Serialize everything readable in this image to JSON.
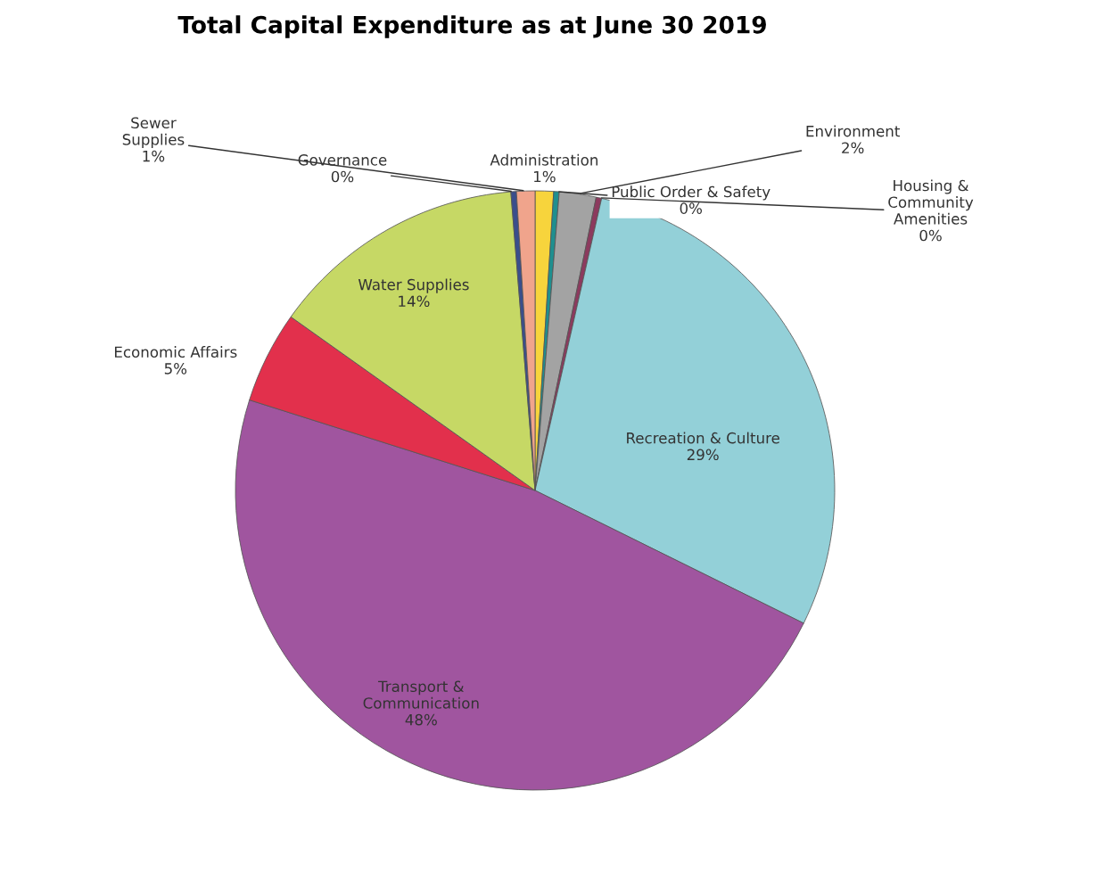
{
  "chart_data": {
    "type": "pie",
    "title": "Total Capital Expenditure as at June 30 2019",
    "categories": [
      "Administration",
      "Public Order & Safety",
      "Environment",
      "Housing &\nCommunity\nAmenities",
      "Recreation & Culture",
      "Transport &\nCommunication",
      "Economic Affairs",
      "Water Supplies",
      "Governance",
      "Sewer\nSupplies"
    ],
    "values": [
      1,
      0.3,
      2,
      0.3,
      29,
      48,
      5,
      14,
      0.3,
      1
    ],
    "value_labels": [
      "1%",
      "0%",
      "2%",
      "0%",
      "29%",
      "48%",
      "5%",
      "14%",
      "0%",
      "1%"
    ],
    "colors": [
      "#f7d43c",
      "#1f8f8f",
      "#a3a3a3",
      "#8c3a5e",
      "#93d0d8",
      "#a0559f",
      "#e2304c",
      "#c6d865",
      "#3a4e8c",
      "#f0a48c"
    ],
    "legend": false
  }
}
